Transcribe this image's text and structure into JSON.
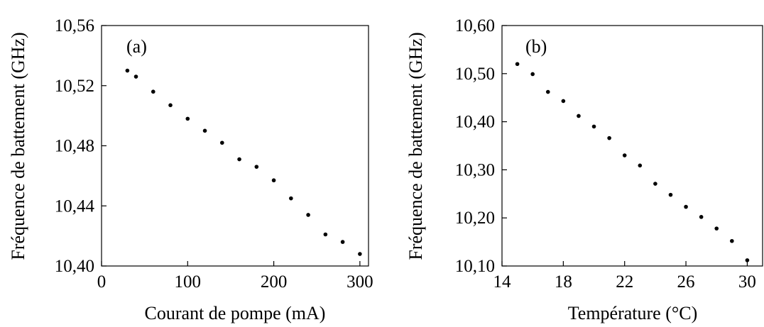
{
  "chart_data": [
    {
      "type": "scatter",
      "panel_label": "(a)",
      "xlabel": "Courant de pompe (mA)",
      "ylabel": "Fréquence de battement (GHz)",
      "xlim": [
        0,
        310
      ],
      "ylim": [
        10.4,
        10.56
      ],
      "x_ticks": [
        0,
        100,
        200,
        300
      ],
      "x_tick_labels": [
        "0",
        "100",
        "200",
        "300"
      ],
      "y_ticks": [
        10.4,
        10.44,
        10.48,
        10.52,
        10.56
      ],
      "y_tick_labels": [
        "10,40",
        "10,44",
        "10,48",
        "10,52",
        "10,56"
      ],
      "grid": false,
      "marker_color": "#000000",
      "series": [
        {
          "x": [
            30,
            40,
            60,
            80,
            100,
            120,
            140,
            160,
            180,
            200,
            220,
            240,
            260,
            280,
            300
          ],
          "y": [
            10.53,
            10.526,
            10.516,
            10.507,
            10.498,
            10.49,
            10.482,
            10.471,
            10.466,
            10.457,
            10.445,
            10.434,
            10.421,
            10.416,
            10.408
          ]
        }
      ]
    },
    {
      "type": "scatter",
      "panel_label": "(b)",
      "xlabel": "Température (°C)",
      "ylabel": "Fréquence de battement (GHz)",
      "xlim": [
        14,
        31
      ],
      "ylim": [
        10.1,
        10.6
      ],
      "x_ticks": [
        14,
        18,
        22,
        26,
        30
      ],
      "x_tick_labels": [
        "14",
        "18",
        "22",
        "26",
        "30"
      ],
      "y_ticks": [
        10.1,
        10.2,
        10.3,
        10.4,
        10.5,
        10.6
      ],
      "y_tick_labels": [
        "10,10",
        "10,20",
        "10,30",
        "10,40",
        "10,50",
        "10,60"
      ],
      "grid": false,
      "marker_color": "#000000",
      "series": [
        {
          "x": [
            15,
            16,
            17,
            18,
            19,
            20,
            21,
            22,
            23,
            24,
            25,
            26,
            27,
            28,
            29,
            30
          ],
          "y": [
            10.52,
            10.499,
            10.462,
            10.443,
            10.412,
            10.39,
            10.366,
            10.33,
            10.309,
            10.271,
            10.248,
            10.223,
            10.202,
            10.178,
            10.152,
            10.112
          ]
        }
      ]
    }
  ]
}
